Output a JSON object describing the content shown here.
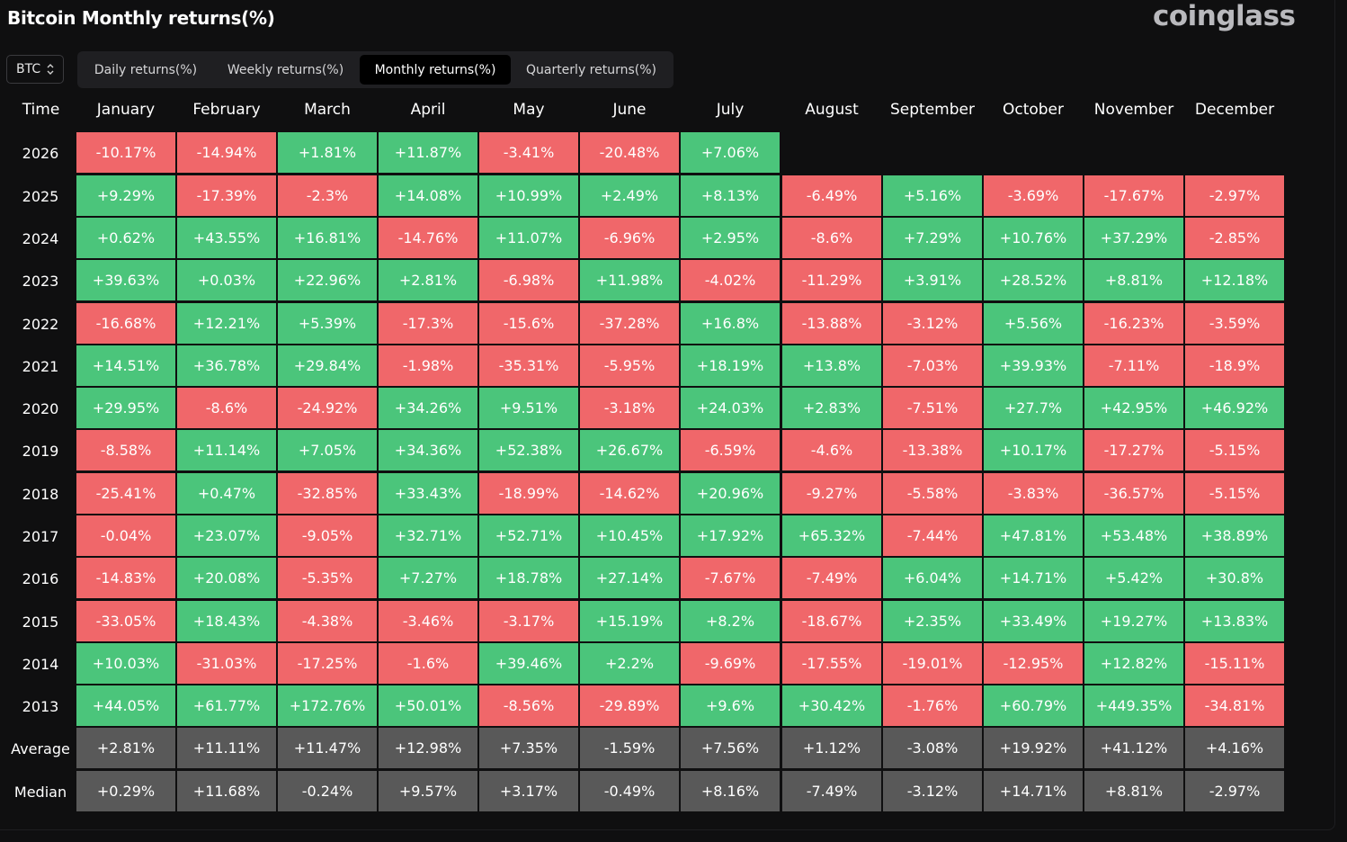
{
  "title": "Bitcoin Monthly returns(%)",
  "brand": "coinglass",
  "asset_selector": {
    "value": "BTC",
    "icon": "chevron-up-down-icon"
  },
  "tabs": [
    {
      "label": "Daily returns(%)",
      "active": false
    },
    {
      "label": "Weekly returns(%)",
      "active": false
    },
    {
      "label": "Monthly returns(%)",
      "active": true
    },
    {
      "label": "Quarterly returns(%)",
      "active": false
    }
  ],
  "table": {
    "time_header": "Time",
    "months": [
      "January",
      "February",
      "March",
      "April",
      "May",
      "June",
      "July",
      "August",
      "September",
      "October",
      "November",
      "December"
    ],
    "rows": [
      {
        "year": "2026",
        "values": [
          "-10.17%",
          "-14.94%",
          "+1.81%",
          "+11.87%",
          "-3.41%",
          "-20.48%",
          "+7.06%"
        ]
      },
      {
        "year": "2025",
        "values": [
          "+9.29%",
          "-17.39%",
          "-2.3%",
          "+14.08%",
          "+10.99%",
          "+2.49%",
          "+8.13%",
          "-6.49%",
          "+5.16%",
          "-3.69%",
          "-17.67%",
          "-2.97%"
        ]
      },
      {
        "year": "2024",
        "values": [
          "+0.62%",
          "+43.55%",
          "+16.81%",
          "-14.76%",
          "+11.07%",
          "-6.96%",
          "+2.95%",
          "-8.6%",
          "+7.29%",
          "+10.76%",
          "+37.29%",
          "-2.85%"
        ]
      },
      {
        "year": "2023",
        "values": [
          "+39.63%",
          "+0.03%",
          "+22.96%",
          "+2.81%",
          "-6.98%",
          "+11.98%",
          "-4.02%",
          "-11.29%",
          "+3.91%",
          "+28.52%",
          "+8.81%",
          "+12.18%"
        ]
      },
      {
        "year": "2022",
        "values": [
          "-16.68%",
          "+12.21%",
          "+5.39%",
          "-17.3%",
          "-15.6%",
          "-37.28%",
          "+16.8%",
          "-13.88%",
          "-3.12%",
          "+5.56%",
          "-16.23%",
          "-3.59%"
        ]
      },
      {
        "year": "2021",
        "values": [
          "+14.51%",
          "+36.78%",
          "+29.84%",
          "-1.98%",
          "-35.31%",
          "-5.95%",
          "+18.19%",
          "+13.8%",
          "-7.03%",
          "+39.93%",
          "-7.11%",
          "-18.9%"
        ]
      },
      {
        "year": "2020",
        "values": [
          "+29.95%",
          "-8.6%",
          "-24.92%",
          "+34.26%",
          "+9.51%",
          "-3.18%",
          "+24.03%",
          "+2.83%",
          "-7.51%",
          "+27.7%",
          "+42.95%",
          "+46.92%"
        ]
      },
      {
        "year": "2019",
        "values": [
          "-8.58%",
          "+11.14%",
          "+7.05%",
          "+34.36%",
          "+52.38%",
          "+26.67%",
          "-6.59%",
          "-4.6%",
          "-13.38%",
          "+10.17%",
          "-17.27%",
          "-5.15%"
        ]
      },
      {
        "year": "2018",
        "values": [
          "-25.41%",
          "+0.47%",
          "-32.85%",
          "+33.43%",
          "-18.99%",
          "-14.62%",
          "+20.96%",
          "-9.27%",
          "-5.58%",
          "-3.83%",
          "-36.57%",
          "-5.15%"
        ]
      },
      {
        "year": "2017",
        "values": [
          "-0.04%",
          "+23.07%",
          "-9.05%",
          "+32.71%",
          "+52.71%",
          "+10.45%",
          "+17.92%",
          "+65.32%",
          "-7.44%",
          "+47.81%",
          "+53.48%",
          "+38.89%"
        ]
      },
      {
        "year": "2016",
        "values": [
          "-14.83%",
          "+20.08%",
          "-5.35%",
          "+7.27%",
          "+18.78%",
          "+27.14%",
          "-7.67%",
          "-7.49%",
          "+6.04%",
          "+14.71%",
          "+5.42%",
          "+30.8%"
        ]
      },
      {
        "year": "2015",
        "values": [
          "-33.05%",
          "+18.43%",
          "-4.38%",
          "-3.46%",
          "-3.17%",
          "+15.19%",
          "+8.2%",
          "-18.67%",
          "+2.35%",
          "+33.49%",
          "+19.27%",
          "+13.83%"
        ]
      },
      {
        "year": "2014",
        "values": [
          "+10.03%",
          "-31.03%",
          "-17.25%",
          "-1.6%",
          "+39.46%",
          "+2.2%",
          "-9.69%",
          "-17.55%",
          "-19.01%",
          "-12.95%",
          "+12.82%",
          "-15.11%"
        ]
      },
      {
        "year": "2013",
        "values": [
          "+44.05%",
          "+61.77%",
          "+172.76%",
          "+50.01%",
          "-8.56%",
          "-29.89%",
          "+9.6%",
          "+30.42%",
          "-1.76%",
          "+60.79%",
          "+449.35%",
          "-34.81%"
        ]
      },
      {
        "year": "Average",
        "summary": true,
        "values": [
          "+2.81%",
          "+11.11%",
          "+11.47%",
          "+12.98%",
          "+7.35%",
          "-1.59%",
          "+7.56%",
          "+1.12%",
          "-3.08%",
          "+19.92%",
          "+41.12%",
          "+4.16%"
        ]
      },
      {
        "year": "Median",
        "summary": true,
        "values": [
          "+0.29%",
          "+11.68%",
          "-0.24%",
          "+9.57%",
          "+3.17%",
          "-0.49%",
          "+8.16%",
          "-7.49%",
          "-3.12%",
          "+14.71%",
          "+8.81%",
          "-2.97%"
        ]
      }
    ]
  },
  "colors": {
    "positive": "#4bc57b",
    "negative": "#f0676a",
    "summary": "#595959",
    "background": "#0f0f10"
  }
}
